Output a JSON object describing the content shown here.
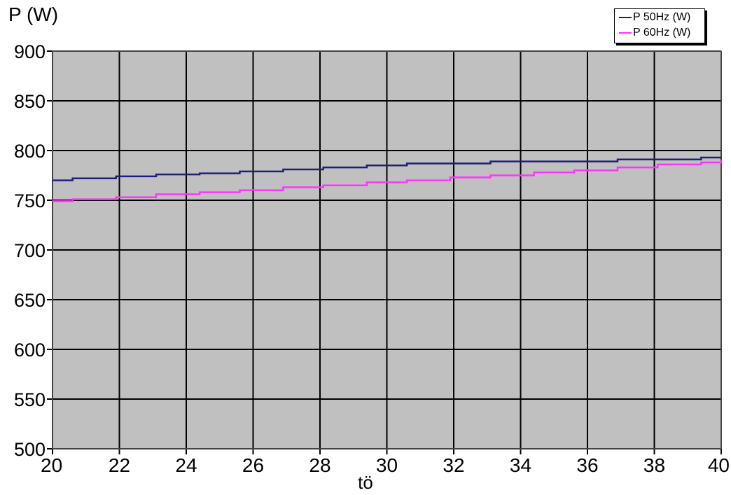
{
  "chart_data": {
    "type": "line",
    "title": "",
    "ylabel": "P  (W)",
    "xlabel": "tö",
    "xlim": [
      20,
      40
    ],
    "ylim": [
      500,
      900
    ],
    "x_ticks": [
      20,
      22,
      24,
      26,
      28,
      30,
      32,
      34,
      36,
      38,
      40
    ],
    "y_ticks": [
      900,
      850,
      800,
      750,
      700,
      650,
      600,
      550,
      500
    ],
    "grid": true,
    "legend_position": "top-right",
    "colors": {
      "plot_bg": "#c0c0c0",
      "grid": "#000000"
    },
    "series": [
      {
        "name": "P 50Hz (W)",
        "color": "#1f1f7a",
        "x": [
          20,
          20.6,
          21.9,
          23.1,
          24.4,
          25.6,
          26.9,
          28.1,
          29.4,
          30.6,
          31.9,
          33.1,
          34.4,
          35.6,
          36.9,
          38.1,
          39.4,
          40
        ],
        "y": [
          770,
          772,
          774,
          776,
          777,
          779,
          781,
          783,
          785,
          787,
          787,
          789,
          789,
          789,
          791,
          791,
          793,
          793
        ]
      },
      {
        "name": "P 60Hz (W)",
        "color": "#ff33ff",
        "x": [
          20,
          20.6,
          21.9,
          23.1,
          24.4,
          25.6,
          26.9,
          28.1,
          29.4,
          30.6,
          31.9,
          33.1,
          34.4,
          35.6,
          36.9,
          38.1,
          39.4,
          40
        ],
        "y": [
          749,
          751,
          753,
          756,
          758,
          760,
          763,
          765,
          768,
          770,
          773,
          775,
          778,
          780,
          783,
          786,
          788,
          790
        ]
      }
    ]
  }
}
